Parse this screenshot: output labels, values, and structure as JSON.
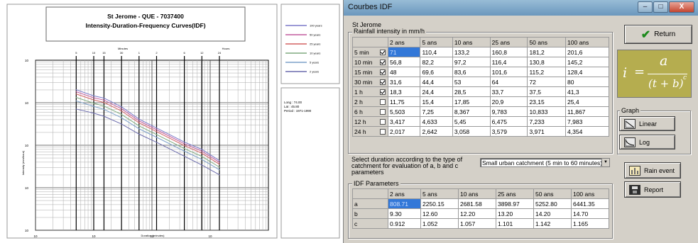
{
  "chart": {
    "title": "St Jerome - QUE - 7037400",
    "subtitle": "Intensity-Duration-Frequency Curves(IDF)",
    "top_axis_left": "Minutes",
    "top_axis_right": "Hours",
    "top_ticks": [
      "5",
      "10",
      "15",
      "30",
      "1",
      "2",
      "6",
      "12",
      "24"
    ],
    "y_ticks": [
      "10",
      "10",
      "10",
      "10",
      "10"
    ],
    "x_ticks": [
      "10",
      "10",
      "10",
      "10"
    ],
    "ylabel": "Intensity (mm/hour)",
    "xlabel": "Duration (minutes)",
    "legend": [
      "100 years",
      "50 years",
      "25 years",
      "10 years",
      "5 years",
      "2 years"
    ],
    "colors": [
      "#7b79c9",
      "#c25b9d",
      "#d36262",
      "#7faa7f",
      "#7ba0c9",
      "#6c6cad"
    ],
    "info": {
      "long": "Long : 74.00",
      "lat": "Lat : 45.80",
      "period": "Period : 1971-1990"
    }
  },
  "chart_data": {
    "type": "line",
    "title": "St Jerome - QUE - 7037400",
    "subtitle": "Intensity-Duration-Frequency Curves(IDF)",
    "xlabel": "Duration (minutes)",
    "ylabel": "Intensity (mm/hour)",
    "x": [
      5,
      10,
      15,
      30,
      60,
      120,
      360,
      720,
      1440
    ],
    "xscale": "log",
    "yscale": "log",
    "series": [
      {
        "name": "2 years",
        "values": [
          71,
          56.8,
          48,
          31.6,
          18.3,
          11.75,
          5.503,
          3.417,
          2.017
        ]
      },
      {
        "name": "5 years",
        "values": [
          110.4,
          82.2,
          69.6,
          44.4,
          24.4,
          15.4,
          7.25,
          4.633,
          2.642
        ]
      },
      {
        "name": "10 years",
        "values": [
          133.2,
          97.2,
          83.6,
          53,
          28.5,
          17.85,
          8.367,
          5.45,
          3.058
        ]
      },
      {
        "name": "25 years",
        "values": [
          160.8,
          116.4,
          101.6,
          64,
          33.7,
          20.9,
          9.783,
          6.475,
          3.579
        ]
      },
      {
        "name": "50 years",
        "values": [
          181.2,
          130.8,
          115.2,
          72,
          37.5,
          23.15,
          10.833,
          7.233,
          3.971
        ]
      },
      {
        "name": "100 years",
        "values": [
          201.6,
          145.2,
          128.4,
          80,
          41.3,
          25.4,
          11.867,
          7.983,
          4.354
        ]
      }
    ]
  },
  "window": {
    "title": "Courbes IDF",
    "min": "–",
    "max": "□",
    "close": "X"
  },
  "station": "St Jerome",
  "intensity": {
    "group_label": "Rainfall intensity in mm/h",
    "columns": [
      "2 ans",
      "5 ans",
      "10 ans",
      "25 ans",
      "50 ans",
      "100 ans"
    ],
    "rows": [
      {
        "label": "5 min",
        "checked": true,
        "values": [
          "71",
          "110,4",
          "133,2",
          "160,8",
          "181,2",
          "201,6"
        ]
      },
      {
        "label": "10 min",
        "checked": true,
        "values": [
          "56,8",
          "82,2",
          "97,2",
          "116,4",
          "130,8",
          "145,2"
        ]
      },
      {
        "label": "15 min",
        "checked": true,
        "values": [
          "48",
          "69,6",
          "83,6",
          "101,6",
          "115,2",
          "128,4"
        ]
      },
      {
        "label": "30 min",
        "checked": true,
        "values": [
          "31,6",
          "44,4",
          "53",
          "64",
          "72",
          "80"
        ]
      },
      {
        "label": "1 h",
        "checked": true,
        "values": [
          "18,3",
          "24,4",
          "28,5",
          "33,7",
          "37,5",
          "41,3"
        ]
      },
      {
        "label": "2 h",
        "checked": false,
        "values": [
          "11,75",
          "15,4",
          "17,85",
          "20,9",
          "23,15",
          "25,4"
        ]
      },
      {
        "label": "6 h",
        "checked": false,
        "values": [
          "5,503",
          "7,25",
          "8,367",
          "9,783",
          "10,833",
          "11,867"
        ]
      },
      {
        "label": "12 h",
        "checked": false,
        "values": [
          "3,417",
          "4,633",
          "5,45",
          "6,475",
          "7,233",
          "7,983"
        ]
      },
      {
        "label": "24 h",
        "checked": false,
        "values": [
          "2,017",
          "2,642",
          "3,058",
          "3,579",
          "3,971",
          "4,354"
        ]
      }
    ]
  },
  "select_text": "Select duration according to the type of catchment for evaluation of a, b and c parameters",
  "catchment_select": "Small urban catchment (5 min to 60 minutes)",
  "params": {
    "group_label": "IDF Parameters",
    "columns": [
      "2 ans",
      "5 ans",
      "10 ans",
      "25 ans",
      "50 ans",
      "100 ans"
    ],
    "rows": [
      {
        "label": "a",
        "values": [
          "808.71",
          "2250.15",
          "2681.58",
          "3898.97",
          "5252.80",
          "6441.35"
        ]
      },
      {
        "label": "b",
        "values": [
          "9.30",
          "12.60",
          "12.20",
          "13.20",
          "14.20",
          "14.70"
        ]
      },
      {
        "label": "c",
        "values": [
          "0.912",
          "1.052",
          "1.057",
          "1.101",
          "1.142",
          "1.165"
        ]
      }
    ]
  },
  "buttons": {
    "return": "Return",
    "graph_label": "Graph",
    "linear": "Linear",
    "log": "Log",
    "rain_event": "Rain event",
    "report": "Report"
  },
  "formula": {
    "i": "i",
    "eq": "=",
    "a": "a",
    "den": "(t + b)",
    "c": "c"
  }
}
